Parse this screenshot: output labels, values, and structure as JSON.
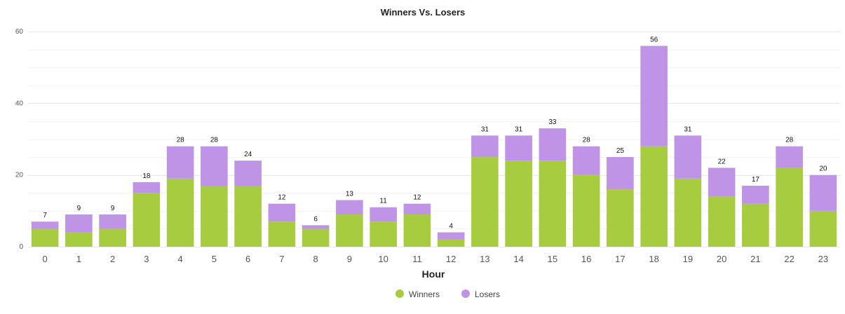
{
  "chart_data": {
    "type": "bar",
    "stacked": true,
    "title": "Winners Vs. Losers",
    "xlabel": "Hour",
    "ylabel": "",
    "ylim": [
      0,
      60
    ],
    "yticks": [
      0,
      20,
      40,
      60
    ],
    "grid": true,
    "legend_position": "bottom-center",
    "categories": [
      "0",
      "1",
      "2",
      "3",
      "4",
      "5",
      "6",
      "7",
      "8",
      "9",
      "10",
      "11",
      "12",
      "13",
      "14",
      "15",
      "16",
      "17",
      "18",
      "19",
      "20",
      "21",
      "22",
      "23"
    ],
    "series": [
      {
        "name": "Winners",
        "color": "#a8cc3f",
        "values": [
          5,
          4,
          5,
          15,
          19,
          17,
          17,
          7,
          5,
          9,
          7,
          9,
          2,
          25,
          24,
          24,
          20,
          16,
          28,
          19,
          14,
          12,
          22,
          10
        ]
      },
      {
        "name": "Losers",
        "color": "#bf93e6",
        "values": [
          2,
          5,
          4,
          3,
          9,
          11,
          7,
          5,
          1,
          4,
          4,
          3,
          2,
          6,
          7,
          9,
          8,
          9,
          28,
          12,
          8,
          5,
          6,
          10
        ]
      }
    ],
    "totals": [
      7,
      9,
      9,
      18,
      28,
      28,
      24,
      12,
      6,
      13,
      11,
      12,
      4,
      31,
      31,
      33,
      28,
      25,
      56,
      31,
      22,
      17,
      28,
      20
    ]
  }
}
